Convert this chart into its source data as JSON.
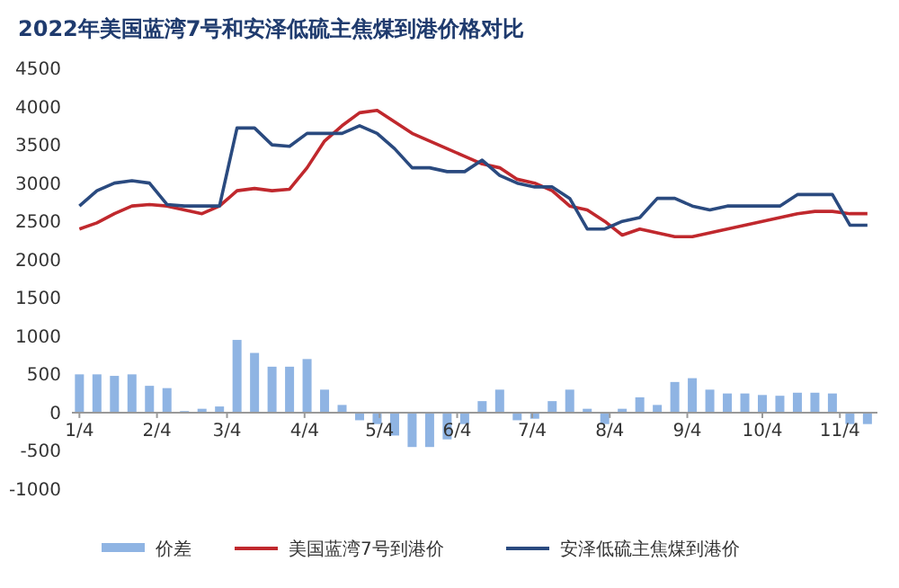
{
  "chart_data": {
    "type": "line",
    "title": "2022年美国蓝湾7号和安泽低硫主焦煤到港价格对比",
    "x": [
      "2022-01-04",
      "2022-01-11",
      "2022-01-18",
      "2022-01-25",
      "2022-02-01",
      "2022-02-08",
      "2022-02-15",
      "2022-02-22",
      "2022-03-01",
      "2022-03-08",
      "2022-03-15",
      "2022-03-22",
      "2022-03-29",
      "2022-04-05",
      "2022-04-12",
      "2022-04-19",
      "2022-04-26",
      "2022-05-03",
      "2022-05-10",
      "2022-05-17",
      "2022-05-24",
      "2022-05-31",
      "2022-06-07",
      "2022-06-14",
      "2022-06-21",
      "2022-06-28",
      "2022-07-05",
      "2022-07-12",
      "2022-07-19",
      "2022-07-26",
      "2022-08-02",
      "2022-08-09",
      "2022-08-16",
      "2022-08-23",
      "2022-08-30",
      "2022-09-06",
      "2022-09-13",
      "2022-09-20",
      "2022-09-27",
      "2022-10-04",
      "2022-10-11",
      "2022-10-18",
      "2022-10-25",
      "2022-11-01",
      "2022-11-08",
      "2022-11-15"
    ],
    "series": [
      {
        "name": "价差",
        "type": "bar",
        "color": "#8fb4e3",
        "values": [
          500,
          500,
          480,
          500,
          350,
          320,
          20,
          50,
          80,
          950,
          780,
          600,
          600,
          700,
          300,
          100,
          -100,
          -150,
          -300,
          -450,
          -450,
          -350,
          -150,
          150,
          300,
          -100,
          -80,
          150,
          300,
          50,
          -150,
          50,
          200,
          100,
          400,
          450,
          300,
          250,
          250,
          230,
          220,
          260,
          260,
          250,
          -150,
          -150
        ]
      },
      {
        "name": "美国蓝湾7号到港价",
        "color": "#c0282d",
        "values": [
          2400,
          2480,
          2600,
          2700,
          2720,
          2700,
          2650,
          2600,
          2700,
          2900,
          2930,
          2900,
          2920,
          3200,
          3550,
          3750,
          3920,
          3950,
          3800,
          3650,
          3550,
          3450,
          3350,
          3250,
          3200,
          3050,
          3000,
          2900,
          2700,
          2650,
          2500,
          2320,
          2400,
          2350,
          2300,
          2300,
          2350,
          2400,
          2450,
          2500,
          2550,
          2600,
          2630,
          2630,
          2600,
          2600
        ]
      },
      {
        "name": "安泽低硫主焦煤到港价",
        "color": "#2a4a7f",
        "values": [
          2700,
          2900,
          3000,
          3030,
          3000,
          2720,
          2700,
          2700,
          2700,
          3720,
          3720,
          3500,
          3480,
          3650,
          3650,
          3650,
          3750,
          3650,
          3450,
          3200,
          3200,
          3150,
          3150,
          3300,
          3100,
          3000,
          2950,
          2950,
          2800,
          2400,
          2400,
          2500,
          2550,
          2800,
          2800,
          2700,
          2650,
          2700,
          2700,
          2700,
          2700,
          2850,
          2850,
          2850,
          2450,
          2450
        ]
      }
    ],
    "xlim": [
      "2022-01-01",
      "2022-11-19"
    ],
    "xticks": [
      {
        "value": "2022-01-04",
        "label": "1/4"
      },
      {
        "value": "2022-02-04",
        "label": "2/4"
      },
      {
        "value": "2022-03-04",
        "label": "3/4"
      },
      {
        "value": "2022-04-04",
        "label": "4/4"
      },
      {
        "value": "2022-05-04",
        "label": "5/4"
      },
      {
        "value": "2022-06-04",
        "label": "6/4"
      },
      {
        "value": "2022-07-04",
        "label": "7/4"
      },
      {
        "value": "2022-08-04",
        "label": "8/4"
      },
      {
        "value": "2022-09-04",
        "label": "9/4"
      },
      {
        "value": "2022-10-04",
        "label": "10/4"
      },
      {
        "value": "2022-11-04",
        "label": "11/4"
      }
    ],
    "ylim": [
      -1000,
      4500
    ],
    "yticks": [
      -1000,
      -500,
      0,
      500,
      1000,
      1500,
      2000,
      2500,
      3000,
      3500,
      4000,
      4500
    ],
    "grid": false,
    "legend": "bottom"
  }
}
